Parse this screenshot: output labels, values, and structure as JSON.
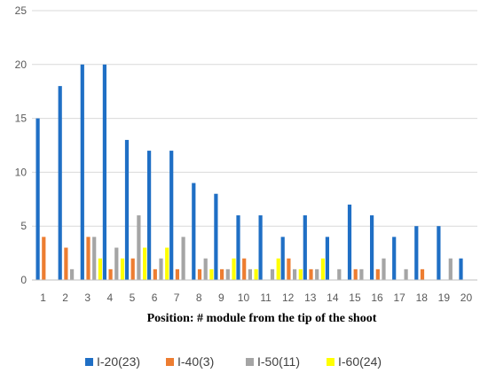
{
  "chart_data": {
    "type": "bar",
    "title": "",
    "xlabel": "Position: # module from the tip of the shoot",
    "ylabel": "",
    "ylim": [
      0,
      25
    ],
    "yticks": [
      0,
      5,
      10,
      15,
      20,
      25
    ],
    "grid": "horizontal",
    "legend_position": "bottom",
    "categories": [
      "1",
      "2",
      "3",
      "4",
      "5",
      "6",
      "7",
      "8",
      "9",
      "10",
      "11",
      "12",
      "13",
      "14",
      "15",
      "16",
      "17",
      "18",
      "19",
      "20"
    ],
    "series": [
      {
        "name": "I-20(23)",
        "color": "#1f6fc5",
        "values": [
          15,
          18,
          20,
          20,
          13,
          12,
          12,
          9,
          8,
          6,
          6,
          4,
          6,
          4,
          7,
          6,
          4,
          5,
          5,
          2
        ]
      },
      {
        "name": "I-40(3)",
        "color": "#ed7d31",
        "values": [
          4,
          3,
          4,
          1,
          2,
          1,
          1,
          1,
          1,
          2,
          0,
          2,
          1,
          0,
          1,
          1,
          0,
          1,
          0,
          0
        ]
      },
      {
        "name": "I-50(11)",
        "color": "#a5a5a5",
        "values": [
          0,
          1,
          4,
          3,
          6,
          2,
          4,
          2,
          1,
          1,
          1,
          1,
          1,
          1,
          1,
          2,
          1,
          0,
          2,
          0
        ]
      },
      {
        "name": "I-60(24)",
        "color": "#ffff00",
        "values": [
          0,
          0,
          2,
          2,
          3,
          3,
          0,
          1,
          2,
          1,
          2,
          1,
          2,
          0,
          0,
          0,
          0,
          0,
          0,
          0
        ]
      }
    ]
  }
}
